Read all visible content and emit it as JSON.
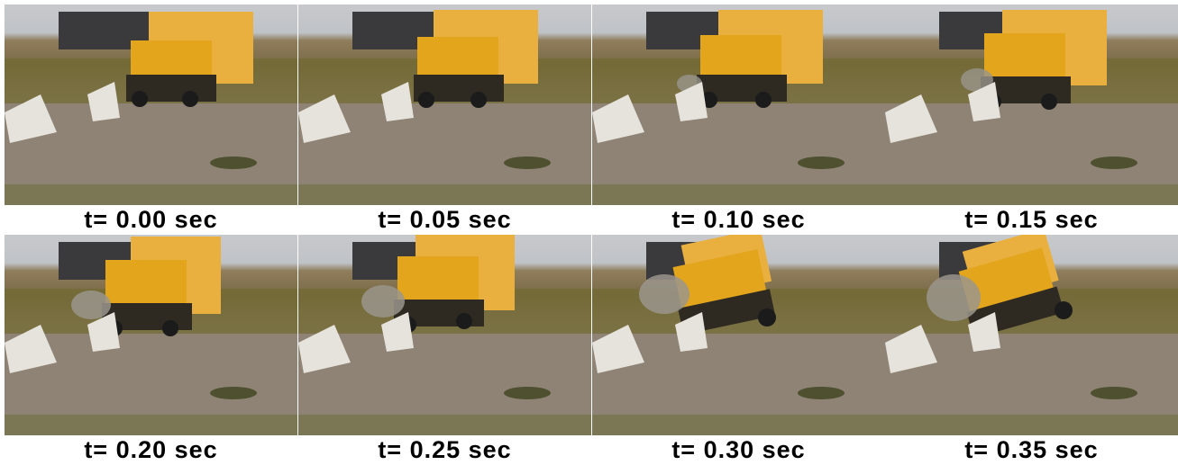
{
  "frames": [
    {
      "caption": "t= 0.00 sec"
    },
    {
      "caption": "t= 0.05 sec"
    },
    {
      "caption": "t= 0.10 sec"
    },
    {
      "caption": "t= 0.15 sec"
    },
    {
      "caption": "t= 0.20 sec"
    },
    {
      "caption": "t= 0.25 sec"
    },
    {
      "caption": "t= 0.30 sec"
    },
    {
      "caption": "t= 0.35 sec"
    }
  ],
  "colors": {
    "truck_cab": "#e2a51c",
    "truck_box": "#e9b040",
    "barrier": "#e6e3dc",
    "ground": "#8e8375",
    "vegetation": "#6f6a2e",
    "dust": "#9a958c"
  }
}
